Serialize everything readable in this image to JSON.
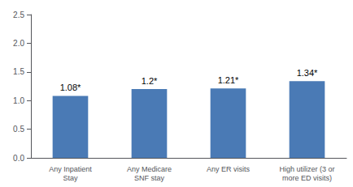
{
  "chart_data": {
    "type": "bar",
    "categories": [
      "Any Inpatient\nStay",
      "Any Medicare\nSNF stay",
      "Any ER visits",
      "High utilizer (3 or\nmore ED visits)"
    ],
    "values": [
      1.08,
      1.2,
      1.21,
      1.34
    ],
    "value_labels": [
      "1.08*",
      "1.2*",
      "1.21*",
      "1.34*"
    ],
    "data_labels": true,
    "color": "#4a7ab5",
    "ylim": [
      0,
      2.5
    ],
    "yticks": [
      {
        "value": 0,
        "label": "0.0"
      },
      0.5,
      {
        "value": 1,
        "label": "1.0"
      },
      1.5,
      {
        "value": 2,
        "label": "2.0"
      },
      2.5
    ],
    "grid": false
  }
}
